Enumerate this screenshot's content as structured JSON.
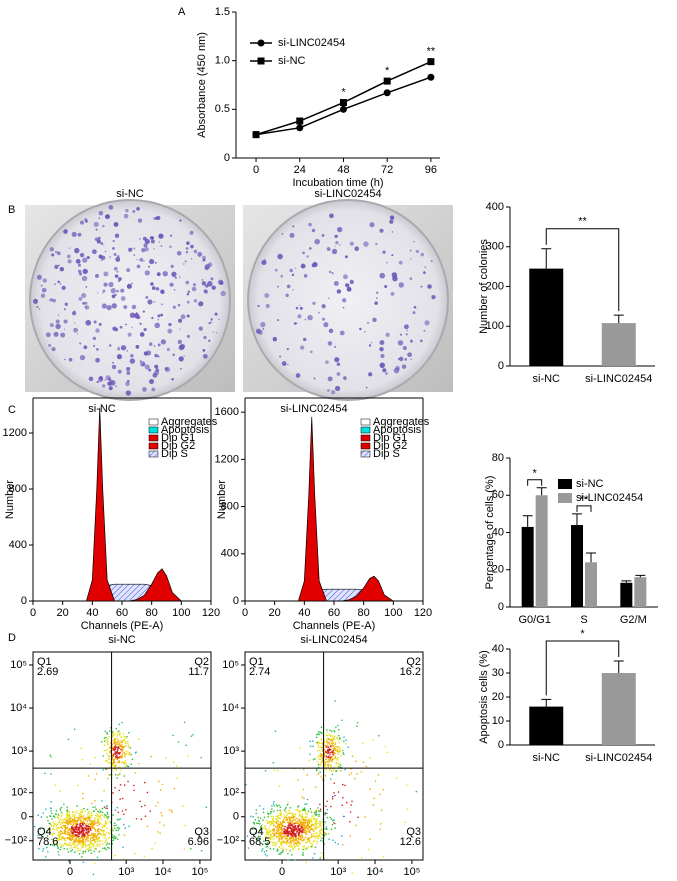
{
  "panels": [
    "A",
    "B",
    "C",
    "D"
  ],
  "images": [
    {
      "title": "si-NC"
    },
    {
      "title": "si-LINC02454"
    }
  ],
  "chart_data": [
    {
      "type": "line",
      "xlabel": "Incubation time (h)",
      "ylabel": "Absorbance (450 nm)",
      "x": [
        0,
        24,
        48,
        72,
        96
      ],
      "xlim": [
        -11,
        101
      ],
      "xticks": [
        0,
        24,
        48,
        72,
        96
      ],
      "ylim": [
        0,
        1.5
      ],
      "yticks": [
        0,
        0.5,
        {
          "value": 1,
          "label": "1.0"
        },
        1.5
      ],
      "series": [
        {
          "name": "si-LINC02454",
          "color": "#000000",
          "marker": "circle",
          "values": [
            0.24,
            0.31,
            0.5,
            0.67,
            0.83
          ]
        },
        {
          "name": "si-NC",
          "color": "#000000",
          "marker": "square",
          "values": [
            0.24,
            0.38,
            0.57,
            0.79,
            0.99
          ]
        }
      ],
      "significance": [
        null,
        null,
        "*",
        "*",
        "**"
      ],
      "legend": "upper left"
    },
    {
      "type": "bar",
      "ylabel": "Number of colonies",
      "categories": [
        "si-NC",
        "si-LINC02454"
      ],
      "values": [
        245,
        108
      ],
      "errors": [
        50,
        20
      ],
      "colors": [
        "#000000",
        "#999999"
      ],
      "ylim": [
        0,
        400
      ],
      "yticks": [
        0,
        100,
        200,
        300,
        400
      ],
      "significance": "**"
    },
    {
      "type": "area",
      "title": "si-NC",
      "xlabel": "Channels (PE-A)",
      "ylabel": "Number",
      "x": [
        36,
        40,
        43,
        45,
        47,
        50,
        55,
        60,
        65,
        70,
        75,
        80,
        84,
        87,
        90,
        94,
        100
      ],
      "xlim": [
        0,
        120
      ],
      "xticks": [
        0,
        20,
        40,
        60,
        80,
        100,
        120
      ],
      "ylim": [
        0,
        1450
      ],
      "yticks": [
        0,
        400,
        800,
        1200
      ],
      "legend_extra": [
        {
          "name": "Aggregates",
          "color": "#ffffff"
        },
        {
          "name": "Apoptosis",
          "color": "#00e0e0"
        }
      ],
      "series": [
        {
          "name": "Dip G1",
          "color": "#e00000",
          "values": [
            0,
            150,
            800,
            1380,
            800,
            150,
            0,
            0,
            0,
            0,
            0,
            0,
            0,
            0,
            0,
            0,
            0
          ]
        },
        {
          "name": "Dip G2",
          "color": "#e00000",
          "values": [
            0,
            0,
            0,
            0,
            0,
            0,
            0,
            0,
            0,
            10,
            40,
            120,
            200,
            230,
            180,
            60,
            0
          ]
        },
        {
          "name": "Dip S",
          "color": "#3a4fd0",
          "pattern": "hatch",
          "values": [
            0,
            0,
            20,
            60,
            90,
            110,
            120,
            120,
            120,
            120,
            120,
            110,
            90,
            60,
            30,
            0,
            0
          ]
        }
      ]
    },
    {
      "type": "area",
      "title": "si-LINC02454",
      "xlabel": "Channels (PE-A)",
      "ylabel": "Number",
      "x": [
        36,
        40,
        43,
        45,
        47,
        50,
        55,
        60,
        65,
        70,
        75,
        80,
        84,
        87,
        90,
        94,
        100
      ],
      "xlim": [
        0,
        120
      ],
      "xticks": [
        0,
        20,
        40,
        60,
        80,
        100,
        120
      ],
      "ylim": [
        0,
        1720
      ],
      "yticks": [
        0,
        400,
        800,
        1200,
        1600
      ],
      "legend_extra": [
        {
          "name": "Aggregates",
          "color": "#ffffff"
        },
        {
          "name": "Apoptosis",
          "color": "#00e0e0"
        }
      ],
      "series": [
        {
          "name": "Dip G1",
          "color": "#e00000",
          "values": [
            0,
            170,
            900,
            1560,
            900,
            170,
            0,
            0,
            0,
            0,
            0,
            0,
            0,
            0,
            0,
            0,
            0
          ]
        },
        {
          "name": "Dip G2",
          "color": "#e00000",
          "values": [
            0,
            0,
            0,
            0,
            0,
            0,
            0,
            0,
            0,
            10,
            40,
            110,
            190,
            210,
            170,
            50,
            0
          ]
        },
        {
          "name": "Dip S",
          "color": "#3a4fd0",
          "pattern": "hatch",
          "values": [
            0,
            0,
            20,
            50,
            80,
            95,
            100,
            100,
            100,
            100,
            100,
            95,
            80,
            50,
            25,
            0,
            0
          ]
        }
      ]
    },
    {
      "type": "bar",
      "ylabel": "Percentage of cells (%)",
      "categories": [
        "G0/G1",
        "S",
        "G2/M"
      ],
      "series": [
        {
          "name": "si-NC",
          "color": "#000000",
          "values": [
            43,
            44,
            13
          ],
          "errors": [
            6,
            6,
            1
          ]
        },
        {
          "name": "si-LINC02454",
          "color": "#999999",
          "values": [
            60,
            24,
            16
          ],
          "errors": [
            4,
            5,
            1
          ]
        }
      ],
      "ylim": [
        0,
        80
      ],
      "yticks": [
        0,
        20,
        40,
        60,
        80
      ],
      "significance": [
        "*",
        "**",
        null
      ],
      "legend": "upper right"
    },
    {
      "type": "flow",
      "title": "si-NC",
      "scale": "arcsinh",
      "xlim": [
        -300,
        200000
      ],
      "ylim": [
        -300,
        200000
      ],
      "xticks": [
        0,
        {
          "value": 1000,
          "label": "10³"
        },
        {
          "value": 10000,
          "label": "10⁴"
        },
        {
          "value": 100000,
          "label": "10⁵"
        }
      ],
      "yticks": [
        {
          "value": -100,
          "label": "−10²"
        },
        0,
        {
          "value": 100,
          "label": "10²"
        },
        {
          "value": 1000,
          "label": "10³"
        },
        {
          "value": 10000,
          "label": "10⁴"
        },
        {
          "value": 100000,
          "label": "10⁵"
        }
      ],
      "x_gate": 400,
      "y_gate": 400,
      "quadrants": [
        {
          "name": "Q1",
          "value": 2.69
        },
        {
          "name": "Q2",
          "value": 11.7
        },
        {
          "name": "Q3",
          "value": 6.96
        },
        {
          "name": "Q4",
          "value": 78.6
        }
      ]
    },
    {
      "type": "flow",
      "title": "si-LINC02454",
      "scale": "arcsinh",
      "xlim": [
        -300,
        200000
      ],
      "ylim": [
        -300,
        200000
      ],
      "xticks": [
        0,
        {
          "value": 1000,
          "label": "10³"
        },
        {
          "value": 10000,
          "label": "10⁴"
        },
        {
          "value": 100000,
          "label": "10⁵"
        }
      ],
      "yticks": [
        {
          "value": -100,
          "label": "−10²"
        },
        0,
        {
          "value": 100,
          "label": "10²"
        },
        {
          "value": 1000,
          "label": "10³"
        },
        {
          "value": 10000,
          "label": "10⁴"
        },
        {
          "value": 100000,
          "label": "10⁵"
        }
      ],
      "x_gate": 400,
      "y_gate": 400,
      "quadrants": [
        {
          "name": "Q1",
          "value": 2.74
        },
        {
          "name": "Q2",
          "value": 16.2
        },
        {
          "name": "Q3",
          "value": 12.6
        },
        {
          "name": "Q4",
          "value": 68.5
        }
      ]
    },
    {
      "type": "bar",
      "ylabel": "Apoptosis cells (%)",
      "categories": [
        "si-NC",
        "si-LINC02454"
      ],
      "values": [
        16,
        30
      ],
      "errors": [
        3,
        5
      ],
      "colors": [
        "#000000",
        "#999999"
      ],
      "ylim": [
        0,
        40
      ],
      "yticks": [
        0,
        10,
        20,
        30,
        40
      ],
      "significance": "*"
    }
  ]
}
